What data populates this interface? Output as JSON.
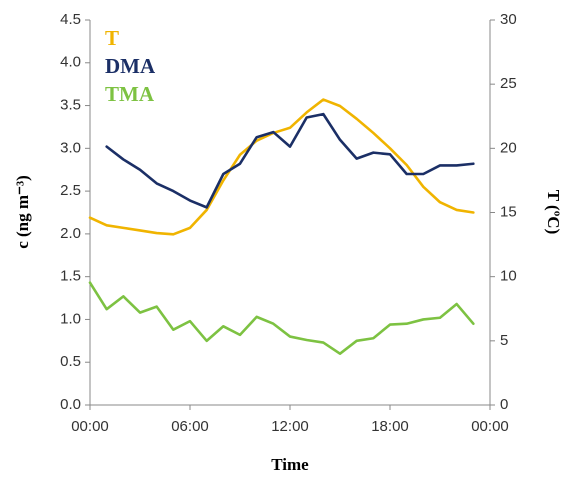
{
  "chart_data": {
    "type": "line",
    "xlabel": "Time",
    "ylabel": "c (ng m⁻³)",
    "y2label": "T (ºC)",
    "x": [
      0,
      1,
      2,
      3,
      4,
      5,
      6,
      7,
      8,
      9,
      10,
      11,
      12,
      13,
      14,
      15,
      16,
      17,
      18,
      19,
      20,
      21,
      22,
      23
    ],
    "xlim": [
      0,
      24
    ],
    "xticks": [
      {
        "value": 0,
        "label": "00:00"
      },
      {
        "value": 6,
        "label": "06:00"
      },
      {
        "value": 12,
        "label": "12:00"
      },
      {
        "value": 18,
        "label": "18:00"
      },
      {
        "value": 24,
        "label": "00:00"
      }
    ],
    "ylim": [
      0,
      4.5
    ],
    "yticks": [
      {
        "value": 0,
        "label": "0.0"
      },
      {
        "value": 0.5,
        "label": "0.5"
      },
      {
        "value": 1,
        "label": "1.0"
      },
      {
        "value": 1.5,
        "label": "1.5"
      },
      {
        "value": 2,
        "label": "2.0"
      },
      {
        "value": 2.5,
        "label": "2.5"
      },
      {
        "value": 3,
        "label": "3.0"
      },
      {
        "value": 3.5,
        "label": "3.5"
      },
      {
        "value": 4,
        "label": "4.0"
      },
      {
        "value": 4.5,
        "label": "4.5"
      }
    ],
    "y2lim": [
      0,
      30
    ],
    "y2ticks": [
      0,
      5,
      10,
      15,
      20,
      25,
      30
    ],
    "series": [
      {
        "name": "T",
        "color": "#f0b400",
        "axis": "y2",
        "values": [
          14.6,
          14.0,
          13.8,
          13.6,
          13.4,
          13.3,
          13.8,
          15.2,
          17.5,
          19.5,
          20.6,
          21.2,
          21.6,
          22.8,
          23.8,
          23.3,
          22.3,
          21.2,
          20.0,
          18.7,
          17.0,
          15.8,
          15.2,
          15.0
        ]
      },
      {
        "name": "DMA",
        "color": "#1b2f66",
        "values": [
          null,
          3.02,
          2.87,
          2.75,
          2.59,
          2.5,
          2.39,
          2.31,
          2.7,
          2.82,
          3.13,
          3.19,
          3.02,
          3.36,
          3.4,
          3.1,
          2.88,
          2.95,
          2.93,
          2.7,
          2.7,
          2.8,
          2.8,
          2.82
        ]
      },
      {
        "name": "TMA",
        "color": "#7dc242",
        "values": [
          1.43,
          1.12,
          1.27,
          1.08,
          1.15,
          0.88,
          0.98,
          0.75,
          0.92,
          0.82,
          1.03,
          0.95,
          0.8,
          0.76,
          0.73,
          0.6,
          0.75,
          0.78,
          0.94,
          0.95,
          1.0,
          1.02,
          1.18,
          0.95
        ]
      }
    ]
  }
}
